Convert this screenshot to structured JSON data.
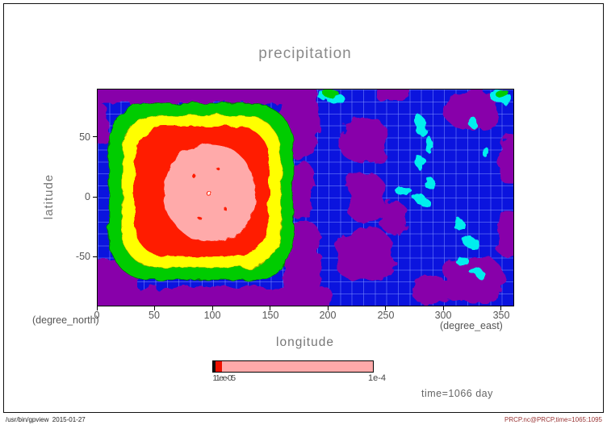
{
  "title": "precipitation",
  "axes": {
    "x_label": "longitude",
    "x_unit": "(degree_east)",
    "y_label": "latitude",
    "y_unit": "(degree_north)",
    "x_ticks": [
      "0",
      "50",
      "100",
      "150",
      "200",
      "250",
      "300",
      "350"
    ],
    "y_ticks": [
      "50",
      "0",
      "-50"
    ]
  },
  "colorbar": {
    "left_label": "11ee-05",
    "right_label": "1e-4",
    "segments": [
      {
        "color": "#101010",
        "width": 3
      },
      {
        "color": "#EE1100",
        "width": 8
      },
      {
        "color": "#FFAAAA",
        "width": 187
      }
    ]
  },
  "annotation": "time=1066 day",
  "footer": {
    "left": "/usr/bin/gpview  2015-01-27",
    "right": "PRCP.nc@PRCP,time=1065:1095"
  },
  "chart_data": {
    "type": "heatmap",
    "subtype": "filled_contour_map",
    "title": "precipitation",
    "xlabel": "longitude",
    "xlabel_unit": "degree_east",
    "ylabel": "latitude",
    "ylabel_unit": "degree_north",
    "xlim": [
      0,
      360
    ],
    "ylim": [
      -90,
      90
    ],
    "x_ticks": [
      0,
      50,
      100,
      150,
      200,
      250,
      300,
      350
    ],
    "y_ticks": [
      -50,
      0,
      50
    ],
    "grid": true,
    "legend_position": "horizontal colorbar below plot",
    "colorbar_labels": [
      "1e-05",
      "1e-4"
    ],
    "colorbar_note": "left-end level labels overprinted on each other (render as '11ee-05'); most of the bar is the top pink level",
    "level_colors_low_to_high": [
      "#8800AA",
      "#0b14de",
      "#00EEEE",
      "#00CC00",
      "#FFFF00",
      "#FF1E00",
      "#FFAAAA"
    ],
    "annotation": "time=1066 day",
    "features": {
      "primary_maximum": {
        "center": {
          "longitude": 97,
          "latitude": 0
        },
        "extent": {
          "longitude": [
            10,
            168
          ],
          "latitude": [
            -68,
            77
          ]
        },
        "description": "Large quasi-square concentric maximum: green ring, yellow ring, red region, pink core with a tiny white innermost contour near (97,0); small red speckles inside the pink core."
      },
      "secondary_features": [
        {
          "color": "cyan",
          "description": "Scattered small local maxima over longitudes 190-350, mostly between latitudes -60 and 60."
        },
        {
          "color": "purple",
          "description": "Low-value patches along top and bottom edges, in a band right of the main maximum (lon 160-190), and scattered over lon 200-360."
        },
        {
          "color": "green",
          "description": "Two small cyan-fringed patches touching the top edge near lon 200 and near the top-right corner."
        }
      ],
      "background": "uniform blue low values with fine light-blue 10-degree grid lines"
    }
  }
}
